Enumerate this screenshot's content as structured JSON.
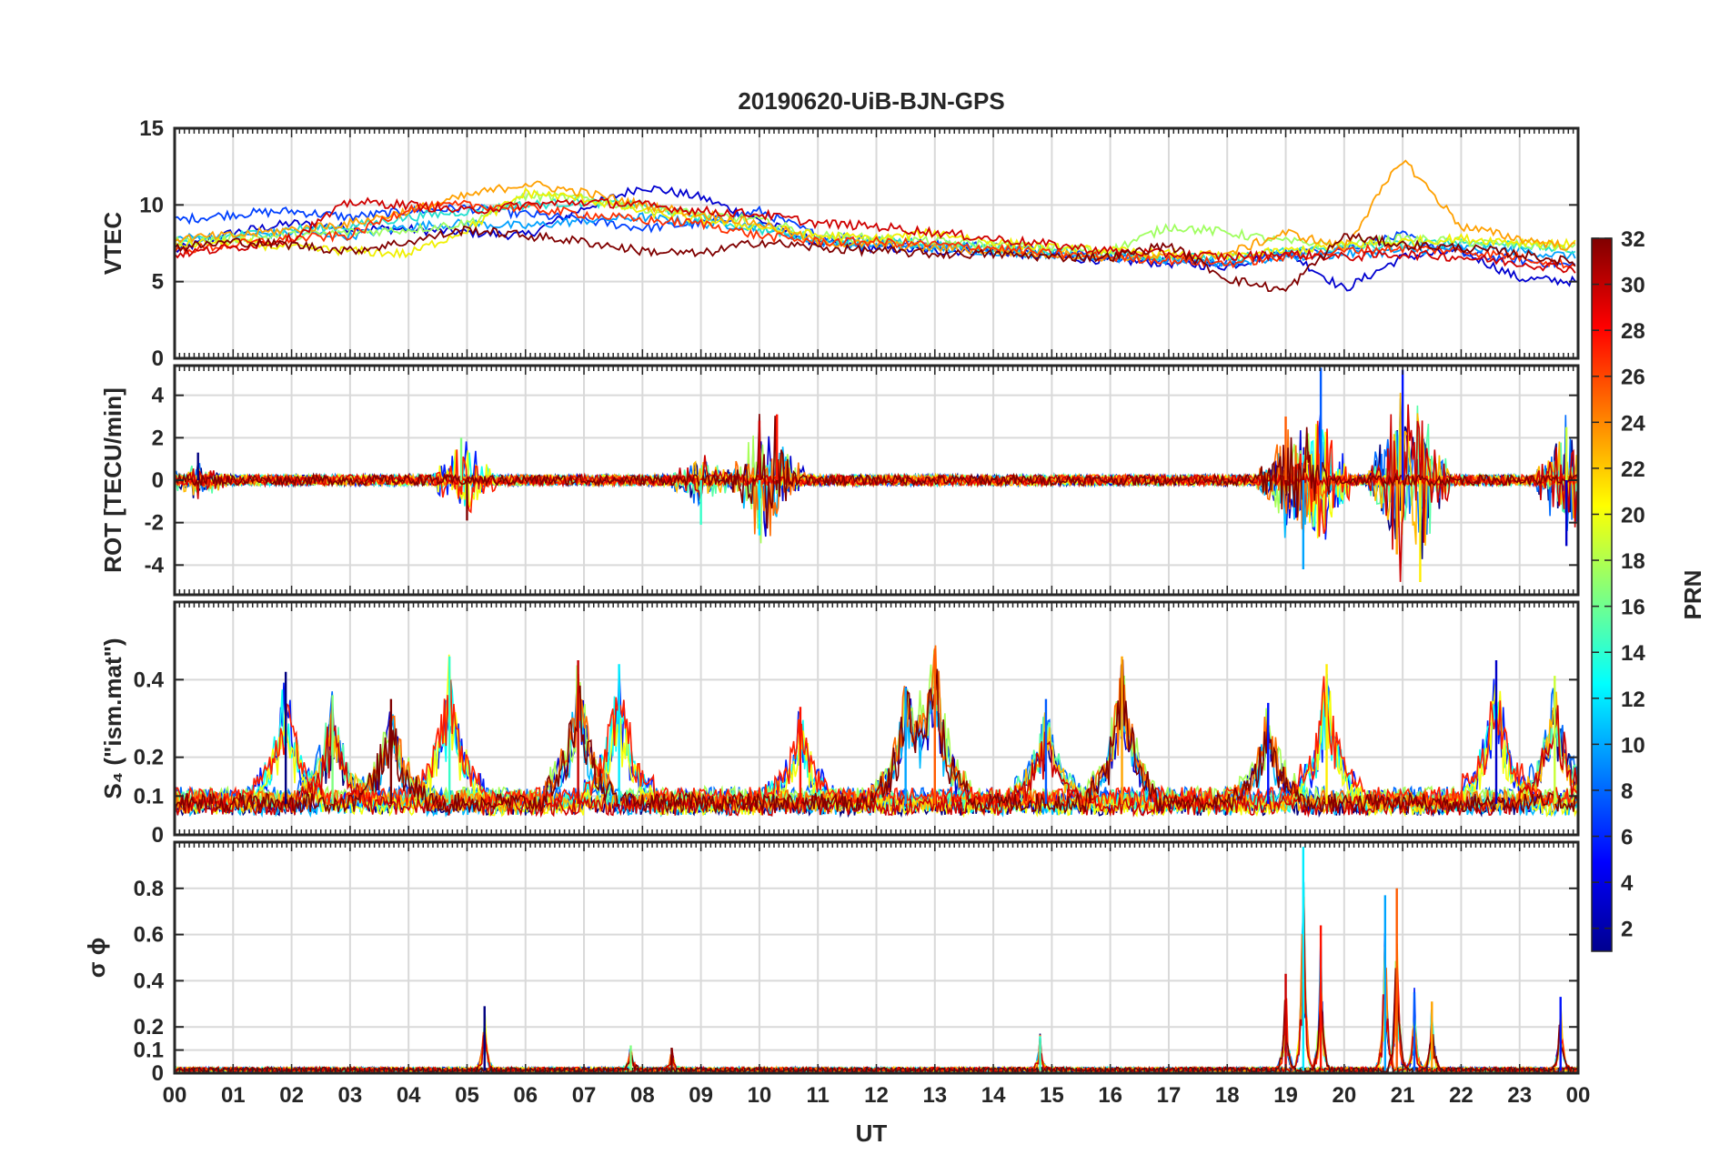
{
  "figure": {
    "title": "20190620-UiB-BJN-GPS",
    "xlabel": "UT"
  },
  "x_tick_labels": [
    "00",
    "01",
    "02",
    "03",
    "04",
    "05",
    "06",
    "07",
    "08",
    "09",
    "10",
    "11",
    "12",
    "13",
    "14",
    "15",
    "16",
    "17",
    "18",
    "19",
    "20",
    "21",
    "22",
    "23",
    "00"
  ],
  "colorbar": {
    "label": "PRN",
    "colormap": "jet",
    "range": [
      1,
      32
    ],
    "tick_labels": [
      "2",
      "4",
      "6",
      "8",
      "10",
      "12",
      "14",
      "16",
      "18",
      "20",
      "22",
      "24",
      "26",
      "28",
      "30",
      "32"
    ]
  },
  "chart_data": [
    {
      "type": "line",
      "panel": "VTEC",
      "ylabel": "VTEC",
      "ylim": [
        0,
        15
      ],
      "ytick_labels": [
        "0",
        "5",
        "10",
        "15"
      ],
      "xlim": [
        0,
        24
      ],
      "grid": true,
      "series_note_count": 32,
      "x": [
        0,
        1,
        2,
        3,
        4,
        5,
        6,
        7,
        8,
        9,
        10,
        11,
        12,
        13,
        14,
        15,
        16,
        17,
        18,
        19,
        20,
        21,
        22,
        23,
        24
      ],
      "series": [
        {
          "prn": 2,
          "color": "#0000d0",
          "values": [
            7.0,
            8.2,
            8.8,
            8.5,
            8.4,
            8.2,
            8.0,
            9.8,
            11.2,
            10.5,
            9.0,
            7.5,
            7.2,
            7.0,
            7.0,
            6.6,
            6.4,
            6.2,
            6.0,
            7.0,
            4.5,
            6.6,
            7.0,
            5.2,
            5.0
          ]
        },
        {
          "prn": 8,
          "color": "#0040ff",
          "values": [
            9.0,
            9.4,
            9.6,
            9.2,
            9.6,
            9.8,
            9.4,
            9.0,
            8.5,
            8.8,
            9.6,
            8.0,
            7.8,
            7.4,
            7.3,
            7.0,
            6.6,
            6.4,
            6.2,
            6.8,
            7.2,
            8.0,
            6.8,
            6.4,
            6.0
          ]
        },
        {
          "prn": 12,
          "color": "#00a0ff",
          "values": [
            7.8,
            8.0,
            8.2,
            8.0,
            8.6,
            8.8,
            8.6,
            9.0,
            9.2,
            8.8,
            8.6,
            7.6,
            7.4,
            7.2,
            7.0,
            6.8,
            6.6,
            6.4,
            6.2,
            6.6,
            6.8,
            7.0,
            7.2,
            7.0,
            6.6
          ]
        },
        {
          "prn": 14,
          "color": "#20e0d0",
          "values": [
            7.5,
            8.0,
            8.4,
            8.6,
            9.2,
            9.6,
            10.0,
            10.2,
            10.0,
            9.2,
            8.4,
            7.8,
            7.6,
            7.4,
            7.2,
            7.0,
            6.8,
            6.6,
            6.5,
            7.0,
            7.2,
            7.4,
            7.6,
            7.4,
            7.0
          ]
        },
        {
          "prn": 18,
          "color": "#a0ff60",
          "values": [
            7.6,
            7.8,
            8.0,
            8.2,
            8.4,
            8.8,
            10.6,
            10.4,
            9.8,
            9.4,
            9.0,
            8.0,
            7.8,
            7.6,
            7.4,
            7.2,
            7.0,
            8.6,
            8.2,
            7.6,
            7.4,
            7.8,
            7.6,
            7.4,
            7.2
          ]
        },
        {
          "prn": 20,
          "color": "#f0f000",
          "values": [
            7.4,
            7.6,
            7.2,
            7.0,
            6.8,
            8.4,
            10.8,
            10.4,
            9.6,
            9.0,
            8.6,
            8.0,
            7.8,
            8.2,
            7.6,
            7.2,
            7.0,
            6.8,
            6.6,
            7.0,
            7.4,
            7.6,
            7.8,
            7.6,
            7.4
          ]
        },
        {
          "prn": 23,
          "color": "#ffa000",
          "values": [
            7.8,
            8.0,
            8.4,
            8.8,
            9.6,
            10.6,
            11.4,
            10.8,
            10.0,
            9.4,
            8.8,
            7.6,
            7.4,
            7.2,
            7.0,
            6.8,
            6.6,
            6.6,
            6.8,
            8.2,
            7.2,
            13.0,
            8.6,
            7.8,
            7.2
          ]
        },
        {
          "prn": 27,
          "color": "#ff3000",
          "values": [
            7.0,
            7.4,
            7.8,
            8.0,
            9.8,
            10.0,
            9.8,
            9.4,
            9.0,
            8.8,
            8.0,
            7.6,
            7.6,
            7.4,
            7.2,
            6.8,
            6.6,
            6.4,
            6.2,
            6.6,
            7.0,
            7.2,
            7.0,
            6.6,
            6.0
          ]
        },
        {
          "prn": 29,
          "color": "#d00000",
          "values": [
            6.8,
            7.2,
            7.8,
            10.2,
            10.0,
            9.6,
            10.0,
            10.2,
            10.0,
            9.6,
            9.4,
            8.8,
            8.6,
            8.2,
            7.8,
            7.4,
            7.0,
            6.8,
            6.6,
            6.8,
            6.6,
            6.8,
            6.6,
            6.2,
            5.8
          ]
        },
        {
          "prn": 32,
          "color": "#800000",
          "values": [
            7.2,
            7.6,
            7.4,
            7.0,
            7.6,
            8.4,
            8.0,
            7.6,
            7.0,
            6.8,
            7.6,
            7.2,
            7.0,
            6.8,
            6.8,
            6.6,
            6.6,
            7.4,
            5.2,
            4.4,
            8.0,
            7.4,
            7.2,
            6.8,
            6.2
          ]
        }
      ]
    },
    {
      "type": "line",
      "panel": "ROT",
      "ylabel": "ROT [TECU/min]",
      "ylim": [
        -5.4,
        5.4
      ],
      "ytick_labels": [
        "-4",
        "-2",
        "0",
        "2",
        "4"
      ],
      "xlim": [
        0,
        24
      ],
      "grid": true,
      "note": "rate of TEC, near zero with bursts around 05, 10, 19 and 21 UT",
      "peaks": [
        {
          "ut": 0.4,
          "value": 1.3
        },
        {
          "ut": 4.9,
          "value": 2.0
        },
        {
          "ut": 5.0,
          "value": -1.9
        },
        {
          "ut": 9.0,
          "value": -2.1
        },
        {
          "ut": 10.0,
          "value": 2.8
        },
        {
          "ut": 10.0,
          "value": -2.6
        },
        {
          "ut": 10.3,
          "value": 3.1
        },
        {
          "ut": 19.3,
          "value": -4.2
        },
        {
          "ut": 19.0,
          "value": 3.0
        },
        {
          "ut": 19.6,
          "value": 5.3
        },
        {
          "ut": 20.9,
          "value": -3.5
        },
        {
          "ut": 21.0,
          "value": 5.2
        },
        {
          "ut": 21.3,
          "value": -4.8
        },
        {
          "ut": 23.8,
          "value": -3.1
        },
        {
          "ut": 23.8,
          "value": 2.5
        }
      ]
    },
    {
      "type": "line",
      "panel": "S4",
      "ylabel": "S4 (\"ism.mat\")",
      "ylim": [
        0,
        0.6
      ],
      "ytick_labels": [
        "0",
        "0.1",
        "0.2",
        "0.4"
      ],
      "xlim": [
        0,
        24
      ],
      "grid": true,
      "note": "amplitude scintillation index, baseline ~0.05-0.1 with spikes",
      "peaks": [
        {
          "ut": 1.9,
          "value": 0.42
        },
        {
          "ut": 2.7,
          "value": 0.36
        },
        {
          "ut": 3.7,
          "value": 0.35
        },
        {
          "ut": 4.7,
          "value": 0.46
        },
        {
          "ut": 6.9,
          "value": 0.45
        },
        {
          "ut": 7.6,
          "value": 0.44
        },
        {
          "ut": 10.7,
          "value": 0.33
        },
        {
          "ut": 12.5,
          "value": 0.38
        },
        {
          "ut": 13.0,
          "value": 0.48
        },
        {
          "ut": 14.9,
          "value": 0.35
        },
        {
          "ut": 16.2,
          "value": 0.46
        },
        {
          "ut": 18.7,
          "value": 0.34
        },
        {
          "ut": 19.7,
          "value": 0.44
        },
        {
          "ut": 22.6,
          "value": 0.45
        },
        {
          "ut": 23.6,
          "value": 0.41
        }
      ]
    },
    {
      "type": "line",
      "panel": "sigma_phi",
      "ylabel": "σ ϕ",
      "ylim": [
        0,
        1.0
      ],
      "ytick_labels": [
        "0",
        "0.1",
        "0.2",
        "0.4",
        "0.6",
        "0.8"
      ],
      "xlim": [
        0,
        24
      ],
      "grid": true,
      "note": "phase scintillation index, near zero with spikes near 19-21 UT",
      "peaks": [
        {
          "ut": 5.3,
          "value": 0.29
        },
        {
          "ut": 7.8,
          "value": 0.12
        },
        {
          "ut": 8.5,
          "value": 0.11
        },
        {
          "ut": 14.8,
          "value": 0.16
        },
        {
          "ut": 19.0,
          "value": 0.43
        },
        {
          "ut": 19.3,
          "value": 0.98
        },
        {
          "ut": 19.6,
          "value": 0.64
        },
        {
          "ut": 20.7,
          "value": 0.77
        },
        {
          "ut": 20.9,
          "value": 0.8
        },
        {
          "ut": 21.2,
          "value": 0.35
        },
        {
          "ut": 21.5,
          "value": 0.31
        },
        {
          "ut": 23.7,
          "value": 0.33
        }
      ]
    }
  ]
}
